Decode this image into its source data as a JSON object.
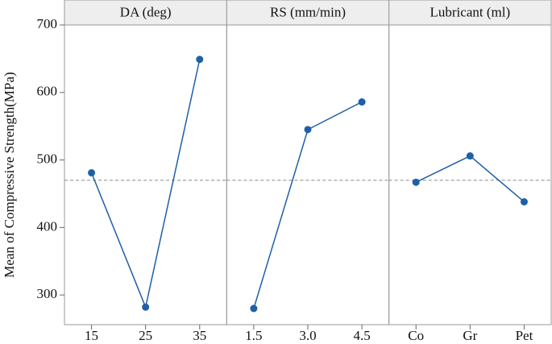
{
  "chart_data": [
    {
      "type": "line",
      "title": "DA (deg)",
      "ylabel": "Mean of Compressive Strength(MPa)",
      "categories": [
        "15",
        "25",
        "35"
      ],
      "values": [
        481,
        282,
        649
      ],
      "color": "#1f5fa8",
      "ylim": [
        256,
        700
      ],
      "yticks": [
        300,
        400,
        500,
        600,
        700
      ],
      "reference_line": 470
    },
    {
      "type": "line",
      "title": "RS (mm/min)",
      "categories": [
        "1.5",
        "3.0",
        "4.5"
      ],
      "values": [
        280,
        545,
        586
      ],
      "color": "#1f5fa8",
      "ylim": [
        256,
        700
      ],
      "reference_line": 470
    },
    {
      "type": "line",
      "title": "Lubricant (ml)",
      "categories": [
        "Co",
        "Gr",
        "Pet"
      ],
      "values": [
        467,
        506,
        438
      ],
      "color": "#1f5fa8",
      "ylim": [
        256,
        700
      ],
      "reference_line": 470
    }
  ]
}
